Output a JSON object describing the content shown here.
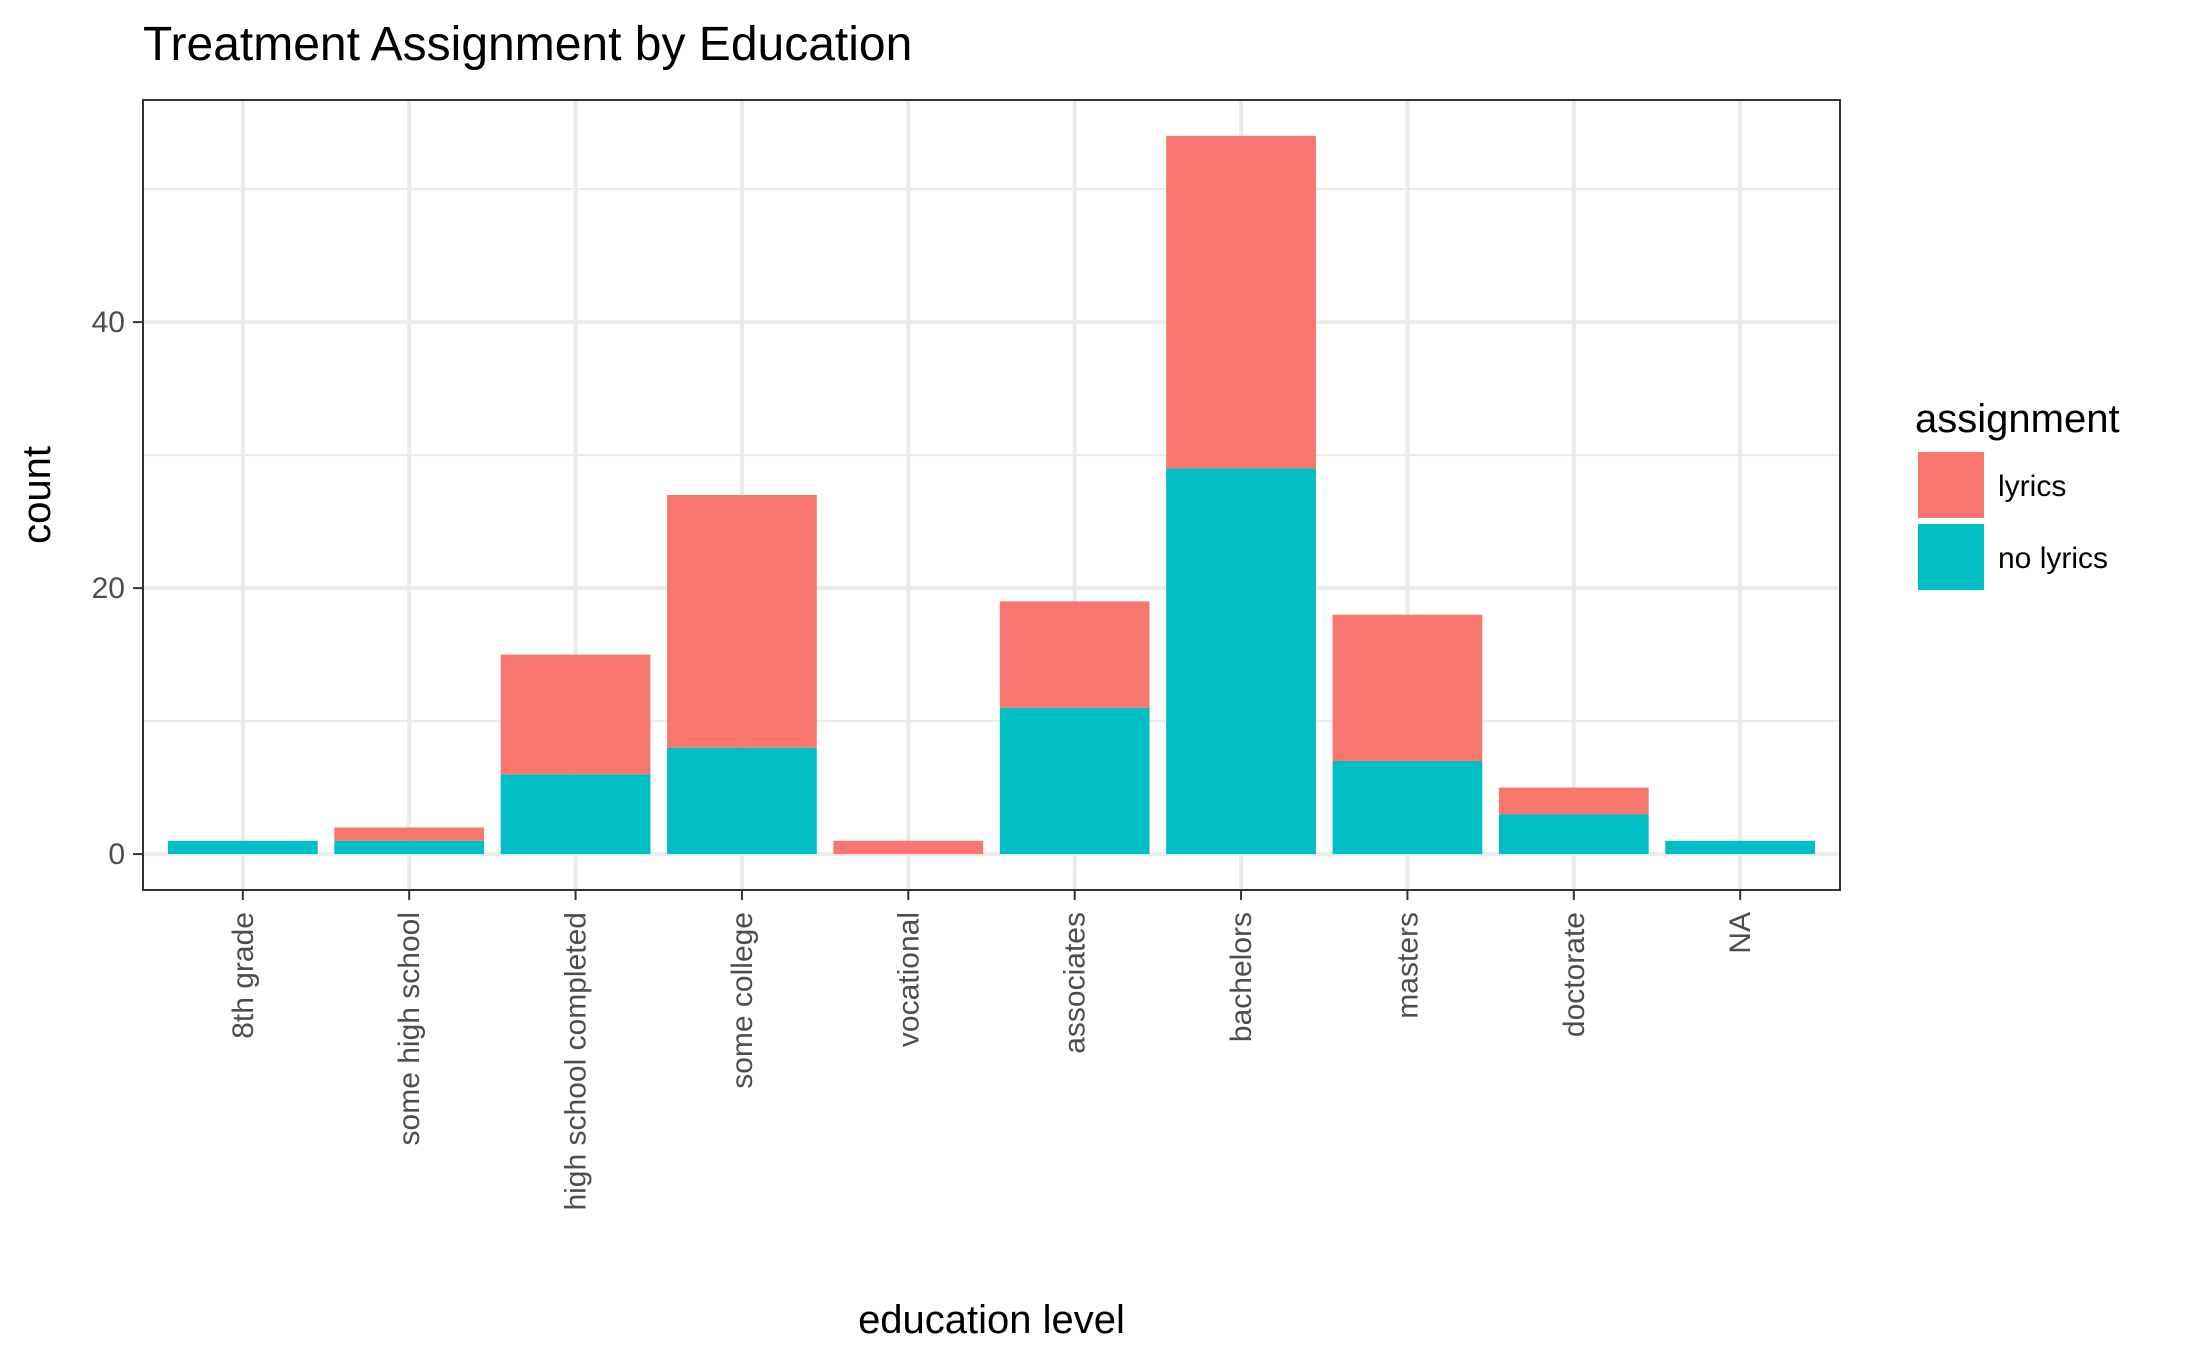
{
  "chart_data": {
    "type": "bar",
    "stacked": true,
    "title": "Treatment Assignment by Education",
    "xlabel": "education level",
    "ylabel": "count",
    "categories": [
      "8th grade",
      "some high school",
      "high school completed",
      "some college",
      "vocational",
      "associates",
      "bachelors",
      "masters",
      "doctorate",
      "NA"
    ],
    "series": [
      {
        "name": "lyrics",
        "color": "#F8766D",
        "values": [
          0,
          1,
          9,
          19,
          1,
          8,
          25,
          11,
          2,
          0
        ]
      },
      {
        "name": "no lyrics",
        "color": "#00BFC4",
        "values": [
          1,
          1,
          6,
          8,
          0,
          11,
          29,
          7,
          3,
          1
        ]
      }
    ],
    "ylim": [
      -2.7,
      56.7
    ],
    "yticks": [
      0,
      20,
      40
    ],
    "grid": true,
    "legend": {
      "title": "assignment",
      "position": "right"
    },
    "panel_background": "#FFFFFF",
    "grid_color": "#EBEBEB",
    "border_color": "#333333"
  }
}
